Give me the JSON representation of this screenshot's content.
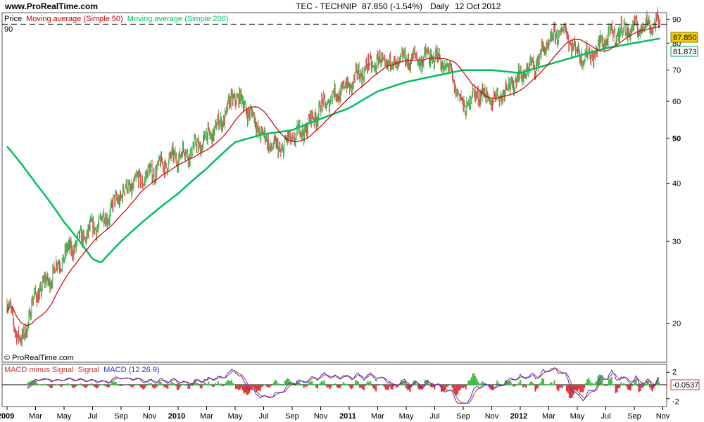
{
  "header": {
    "site": "www.ProRealTime.com",
    "symbol": "TEC - TECHNIP",
    "last": "87.850 (-1.54%)",
    "period": "Daily",
    "date": "12 Oct 2012"
  },
  "colors": {
    "price_up": "#3cb34a",
    "price_down": "#d84a4a",
    "ma50": "#cc0000",
    "ma200": "#00c060",
    "macd": "#3333cc",
    "signal": "#cc3333",
    "hist_pos": "#44bb44",
    "hist_neg": "#dd3333",
    "last_badge": "#f2d000"
  },
  "chart_data": [
    {
      "type": "line",
      "panel": "price",
      "scale": "log",
      "legend": {
        "price": "Price",
        "ma50": "Moving average (Simple 50)",
        "ma200": "Moving average (Simple 200)"
      },
      "corner_label": "90",
      "watermark": "© ProRealTime.com",
      "ylim": [
        16.5,
        93
      ],
      "yticks": [
        20,
        30,
        40,
        50,
        60,
        70,
        80,
        90
      ],
      "reference_line": 87.85,
      "last_price_label": "87.850",
      "ma50_label": "81.873",
      "x_ticks": [
        {
          "label": "2009",
          "year": true
        },
        {
          "label": "Mar"
        },
        {
          "label": "May"
        },
        {
          "label": "Jul"
        },
        {
          "label": "Sep"
        },
        {
          "label": "Nov"
        },
        {
          "label": "2010",
          "year": true
        },
        {
          "label": "Mar"
        },
        {
          "label": "May"
        },
        {
          "label": "Jul"
        },
        {
          "label": "Sep"
        },
        {
          "label": "Nov"
        },
        {
          "label": "2011",
          "year": true
        },
        {
          "label": "Mar"
        },
        {
          "label": "May"
        },
        {
          "label": "Jul"
        },
        {
          "label": "Sep"
        },
        {
          "label": "Nov"
        },
        {
          "label": "2012",
          "year": true
        },
        {
          "label": "Mar"
        },
        {
          "label": "May"
        },
        {
          "label": "Jul"
        },
        {
          "label": "Sep"
        },
        {
          "label": "Nov"
        }
      ],
      "price_keypoints": [
        [
          0,
          22
        ],
        [
          0.5,
          18
        ],
        [
          1,
          23
        ],
        [
          1.5,
          25
        ],
        [
          2,
          28
        ],
        [
          2.5,
          30
        ],
        [
          3,
          32
        ],
        [
          3.5,
          34
        ],
        [
          4,
          38
        ],
        [
          4.5,
          40
        ],
        [
          5,
          42
        ],
        [
          5.5,
          44
        ],
        [
          6,
          46
        ],
        [
          6.5,
          47
        ],
        [
          7,
          50
        ],
        [
          7.5,
          54
        ],
        [
          8,
          62
        ],
        [
          8.5,
          57
        ],
        [
          9,
          50
        ],
        [
          9.5,
          47
        ],
        [
          10,
          50
        ],
        [
          10.5,
          53
        ],
        [
          11,
          58
        ],
        [
          11.5,
          62
        ],
        [
          12,
          65
        ],
        [
          12.5,
          70
        ],
        [
          13,
          73
        ],
        [
          13.5,
          72
        ],
        [
          14,
          74
        ],
        [
          14.5,
          74
        ],
        [
          15,
          75
        ],
        [
          15.5,
          70
        ],
        [
          16,
          58
        ],
        [
          16.5,
          63
        ],
        [
          17,
          60
        ],
        [
          17.5,
          64
        ],
        [
          18,
          68
        ],
        [
          18.5,
          72
        ],
        [
          19,
          80
        ],
        [
          19.5,
          86
        ],
        [
          20,
          76
        ],
        [
          20.5,
          75
        ],
        [
          21,
          82
        ],
        [
          21.5,
          85
        ],
        [
          22,
          86
        ],
        [
          22.5,
          88
        ],
        [
          22.9,
          87.85
        ]
      ],
      "ma200_keypoints": [
        [
          0,
          48
        ],
        [
          1,
          40
        ],
        [
          2,
          33
        ],
        [
          3,
          27.5
        ],
        [
          3.3,
          27
        ],
        [
          4,
          30
        ],
        [
          5,
          34
        ],
        [
          6,
          38
        ],
        [
          7,
          43
        ],
        [
          8,
          49
        ],
        [
          9,
          51
        ],
        [
          10,
          52
        ],
        [
          11,
          55
        ],
        [
          12,
          58
        ],
        [
          13,
          63
        ],
        [
          14,
          66
        ],
        [
          15,
          68
        ],
        [
          16,
          70
        ],
        [
          17,
          70
        ],
        [
          18,
          69
        ],
        [
          19,
          72
        ],
        [
          20,
          75
        ],
        [
          21,
          78
        ],
        [
          22,
          80
        ],
        [
          22.9,
          81.87
        ]
      ]
    },
    {
      "type": "line",
      "panel": "indicator",
      "legend": {
        "hist": "MACD minus Signal",
        "signal": "Signal",
        "macd": "MACD (12 26 9)"
      },
      "ylim": [
        -3,
        3
      ],
      "yticks": [
        2,
        -2
      ],
      "last_value_label": "-0.0537"
    }
  ]
}
